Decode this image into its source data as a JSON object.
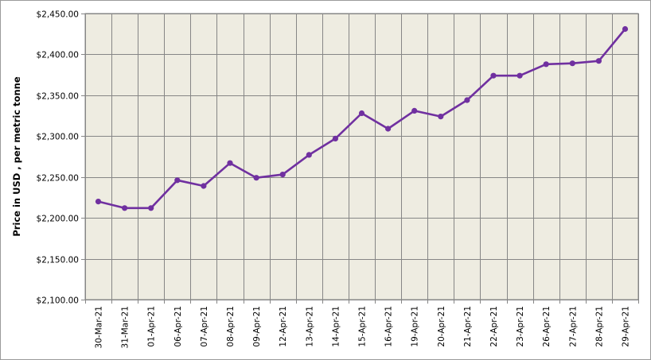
{
  "chart_data": {
    "type": "line",
    "title": "",
    "xlabel": "",
    "ylabel": "Price in USD , per metric tonne",
    "ylim": [
      2100,
      2450
    ],
    "ytick_step": 50,
    "ytick_labels": [
      "$2,100.00",
      "$2,150.00",
      "$2,200.00",
      "$2,250.00",
      "$2,300.00",
      "$2,350.00",
      "$2,400.00",
      "$2,450.00"
    ],
    "grid": true,
    "legend": "none",
    "categories": [
      "30-Mar-21",
      "31-Mar-21",
      "01-Apr-21",
      "06-Apr-21",
      "07-Apr-21",
      "08-Apr-21",
      "09-Apr-21",
      "12-Apr-21",
      "13-Apr-21",
      "14-Apr-21",
      "15-Apr-21",
      "16-Apr-21",
      "19-Apr-21",
      "20-Apr-21",
      "21-Apr-21",
      "22-Apr-21",
      "23-Apr-21",
      "26-Apr-21",
      "27-Apr-21",
      "28-Apr-21",
      "29-Apr-21"
    ],
    "series": [
      {
        "values": [
          2220,
          2212,
          2212,
          2246,
          2239,
          2267,
          2249,
          2253,
          2277,
          2297,
          2328,
          2309,
          2331,
          2324,
          2344,
          2374,
          2374,
          2388,
          2389,
          2392,
          2431
        ],
        "color": "#7030a0"
      }
    ],
    "colors": {
      "plot_background": "#eeece1",
      "gridline": "#868686",
      "frame_border": "#9a9a9a"
    }
  }
}
